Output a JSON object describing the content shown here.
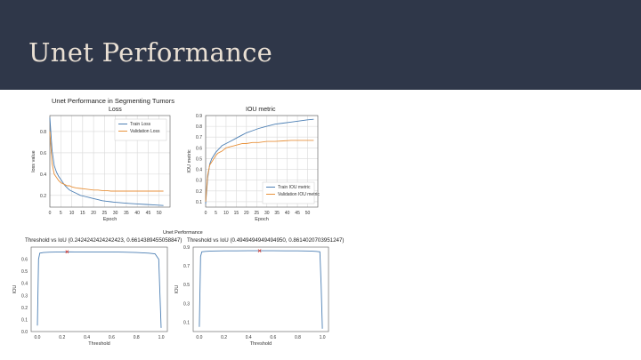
{
  "slide": {
    "title": "Unet Performance"
  },
  "figure": {
    "top_title": "Unet Performance in Segmenting Tumors",
    "bottom_title": "Unet Performance"
  },
  "chart_data": [
    {
      "type": "line",
      "title": "Loss",
      "xlabel": "Epoch",
      "ylabel": "loss value",
      "xlim": [
        0,
        55
      ],
      "ylim": [
        0.09,
        0.95
      ],
      "x_ticks": [
        0,
        5,
        10,
        15,
        20,
        25,
        30,
        35,
        40,
        45,
        50
      ],
      "y_ticks": [
        0.2,
        0.4,
        0.6,
        0.8
      ],
      "legend": "top-right",
      "grid": true,
      "x": [
        0,
        1,
        2,
        3,
        4,
        5,
        6,
        7,
        8,
        9,
        10,
        12,
        14,
        16,
        18,
        20,
        22,
        24,
        26,
        28,
        30,
        33,
        36,
        40,
        44,
        48,
        52
      ],
      "series": [
        {
          "name": "Train Loss",
          "color": "#4c7fb4",
          "values": [
            0.93,
            0.62,
            0.48,
            0.42,
            0.38,
            0.35,
            0.32,
            0.29,
            0.27,
            0.25,
            0.24,
            0.22,
            0.2,
            0.19,
            0.18,
            0.17,
            0.16,
            0.15,
            0.145,
            0.14,
            0.135,
            0.13,
            0.125,
            0.12,
            0.115,
            0.11,
            0.105
          ]
        },
        {
          "name": "Validation Loss",
          "color": "#e8923c",
          "values": [
            0.8,
            0.5,
            0.4,
            0.37,
            0.34,
            0.32,
            0.31,
            0.3,
            0.29,
            0.29,
            0.28,
            0.27,
            0.265,
            0.26,
            0.255,
            0.25,
            0.25,
            0.245,
            0.245,
            0.24,
            0.24,
            0.24,
            0.24,
            0.24,
            0.24,
            0.24,
            0.24
          ]
        }
      ]
    },
    {
      "type": "line",
      "title": "IOU metric",
      "xlabel": "Epoch",
      "ylabel": "IOU metric",
      "xlim": [
        0,
        55
      ],
      "ylim": [
        0.05,
        0.9
      ],
      "x_ticks": [
        0,
        5,
        10,
        15,
        20,
        25,
        30,
        35,
        40,
        45,
        50
      ],
      "y_ticks": [
        0.1,
        0.2,
        0.3,
        0.4,
        0.5,
        0.6,
        0.7,
        0.8,
        0.9
      ],
      "legend": "bottom-right",
      "grid": true,
      "x": [
        0,
        1,
        2,
        3,
        4,
        5,
        6,
        7,
        8,
        10,
        12,
        14,
        16,
        18,
        20,
        23,
        26,
        30,
        34,
        38,
        42,
        46,
        50,
        53
      ],
      "series": [
        {
          "name": "Train IOU metric",
          "color": "#4c7fb4",
          "values": [
            0.08,
            0.32,
            0.45,
            0.5,
            0.53,
            0.56,
            0.58,
            0.6,
            0.62,
            0.64,
            0.66,
            0.68,
            0.7,
            0.72,
            0.74,
            0.76,
            0.78,
            0.8,
            0.82,
            0.83,
            0.84,
            0.85,
            0.86,
            0.865
          ]
        },
        {
          "name": "Validation IOU metric",
          "color": "#e8923c",
          "values": [
            0.1,
            0.35,
            0.44,
            0.47,
            0.5,
            0.53,
            0.55,
            0.56,
            0.57,
            0.6,
            0.61,
            0.62,
            0.63,
            0.64,
            0.64,
            0.65,
            0.65,
            0.66,
            0.66,
            0.665,
            0.67,
            0.67,
            0.67,
            0.67
          ]
        }
      ]
    },
    {
      "type": "line",
      "title": "Threshold vs IoU (0.2424242424242423, 0.6614389455058847)",
      "xlabel": "Threshold",
      "ylabel": "IOU",
      "xlim": [
        -0.05,
        1.05
      ],
      "ylim": [
        0,
        0.7
      ],
      "x_ticks": [
        0.0,
        0.2,
        0.4,
        0.6,
        0.8,
        1.0
      ],
      "y_ticks": [
        0.0,
        0.1,
        0.2,
        0.3,
        0.4,
        0.5,
        0.6
      ],
      "x": [
        0.0,
        0.01,
        0.02,
        0.05,
        0.1,
        0.2,
        0.24,
        0.3,
        0.4,
        0.5,
        0.6,
        0.7,
        0.8,
        0.9,
        0.95,
        0.98,
        0.99,
        1.0
      ],
      "series": [
        {
          "color": "#4c7fb4",
          "values": [
            0.05,
            0.6,
            0.65,
            0.655,
            0.658,
            0.66,
            0.661,
            0.66,
            0.66,
            0.66,
            0.66,
            0.658,
            0.655,
            0.65,
            0.645,
            0.6,
            0.3,
            0.03
          ]
        }
      ],
      "best_point": {
        "x": 0.24,
        "y": 0.661,
        "marker": "x",
        "color": "#d9362b"
      }
    },
    {
      "type": "line",
      "title": "Threshold vs IoU (0.4949494949494950, 0.8614020703951247)",
      "xlabel": "Threshold",
      "ylabel": "IOU",
      "xlim": [
        -0.05,
        1.05
      ],
      "ylim": [
        0,
        0.9
      ],
      "x_ticks": [
        0.0,
        0.2,
        0.4,
        0.6,
        0.8,
        1.0
      ],
      "y_ticks": [
        0.1,
        0.3,
        0.5,
        0.7,
        0.9
      ],
      "x": [
        0.0,
        0.01,
        0.02,
        0.05,
        0.1,
        0.2,
        0.3,
        0.4,
        0.49,
        0.6,
        0.7,
        0.8,
        0.9,
        0.95,
        0.98,
        0.99,
        1.0
      ],
      "series": [
        {
          "color": "#4c7fb4",
          "values": [
            0.05,
            0.8,
            0.85,
            0.855,
            0.858,
            0.86,
            0.86,
            0.861,
            0.861,
            0.861,
            0.86,
            0.86,
            0.858,
            0.855,
            0.85,
            0.5,
            0.03
          ]
        }
      ],
      "best_point": {
        "x": 0.49,
        "y": 0.861,
        "marker": "x",
        "color": "#d9362b"
      }
    }
  ]
}
